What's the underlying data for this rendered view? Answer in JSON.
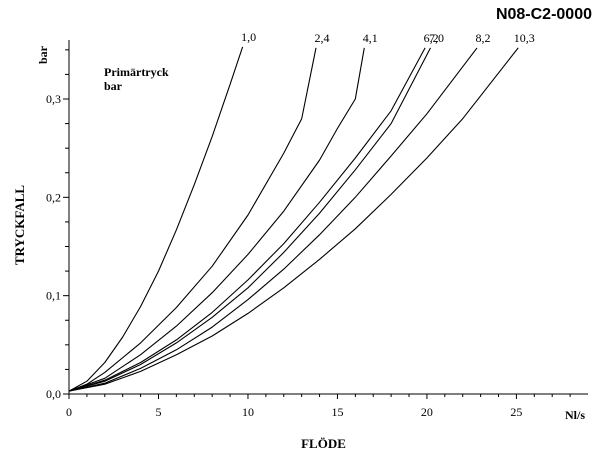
{
  "chart_code": "N08-C2-0000",
  "chart_data": {
    "type": "line",
    "title": "",
    "xlabel": "FLÖDE",
    "xunit": "Nl/s",
    "ylabel": "TRYCKFALL",
    "yunit": "bar",
    "xlim": [
      0,
      29
    ],
    "ylim": [
      0,
      0.36
    ],
    "xticks": [
      0,
      5,
      10,
      15,
      20,
      25
    ],
    "xtick_labels": [
      "0",
      "5",
      "10",
      "15",
      "20",
      "25"
    ],
    "yticks": [
      0.0,
      0.1,
      0.2,
      0.3
    ],
    "ytick_labels": [
      "0,0",
      "0,1",
      "0,2",
      "0,3"
    ],
    "yminor_step": 0.025,
    "grid": false,
    "legend_title": [
      "Primärtryck",
      "bar"
    ],
    "series": [
      {
        "name": "1,0",
        "points": [
          [
            0,
            0.003
          ],
          [
            1,
            0.013
          ],
          [
            2,
            0.032
          ],
          [
            3,
            0.058
          ],
          [
            4,
            0.089
          ],
          [
            5,
            0.125
          ],
          [
            6,
            0.167
          ],
          [
            7,
            0.213
          ],
          [
            8,
            0.262
          ],
          [
            9,
            0.315
          ],
          [
            9.7,
            0.353
          ]
        ]
      },
      {
        "name": "2,4",
        "points": [
          [
            0,
            0.003
          ],
          [
            1,
            0.01
          ],
          [
            2,
            0.022
          ],
          [
            4,
            0.052
          ],
          [
            6,
            0.088
          ],
          [
            8,
            0.13
          ],
          [
            10,
            0.182
          ],
          [
            12,
            0.245
          ],
          [
            13,
            0.28
          ],
          [
            13.8,
            0.352
          ]
        ]
      },
      {
        "name": "4,1",
        "points": [
          [
            0,
            0.003
          ],
          [
            2,
            0.016
          ],
          [
            4,
            0.04
          ],
          [
            6,
            0.069
          ],
          [
            8,
            0.103
          ],
          [
            10,
            0.142
          ],
          [
            12,
            0.186
          ],
          [
            14,
            0.238
          ],
          [
            15,
            0.27
          ],
          [
            16,
            0.3
          ],
          [
            16.5,
            0.352
          ]
        ]
      },
      {
        "name": "6,2",
        "points": [
          [
            0,
            0.003
          ],
          [
            2,
            0.014
          ],
          [
            4,
            0.032
          ],
          [
            6,
            0.055
          ],
          [
            8,
            0.083
          ],
          [
            10,
            0.116
          ],
          [
            12,
            0.153
          ],
          [
            14,
            0.195
          ],
          [
            16,
            0.24
          ],
          [
            18,
            0.288
          ],
          [
            19.9,
            0.352
          ]
        ]
      },
      {
        "name": "7,0",
        "points": [
          [
            0,
            0.003
          ],
          [
            2,
            0.013
          ],
          [
            4,
            0.03
          ],
          [
            6,
            0.052
          ],
          [
            8,
            0.078
          ],
          [
            10,
            0.108
          ],
          [
            12,
            0.144
          ],
          [
            14,
            0.184
          ],
          [
            16,
            0.228
          ],
          [
            18,
            0.275
          ],
          [
            20.2,
            0.352
          ]
        ]
      },
      {
        "name": "8,2",
        "points": [
          [
            0,
            0.003
          ],
          [
            2,
            0.011
          ],
          [
            4,
            0.026
          ],
          [
            6,
            0.045
          ],
          [
            8,
            0.068
          ],
          [
            10,
            0.096
          ],
          [
            12,
            0.127
          ],
          [
            14,
            0.162
          ],
          [
            16,
            0.2
          ],
          [
            18,
            0.242
          ],
          [
            20,
            0.285
          ],
          [
            22.8,
            0.352
          ]
        ]
      },
      {
        "name": "10,3",
        "points": [
          [
            0,
            0.003
          ],
          [
            2,
            0.01
          ],
          [
            4,
            0.023
          ],
          [
            6,
            0.04
          ],
          [
            8,
            0.059
          ],
          [
            10,
            0.082
          ],
          [
            12,
            0.108
          ],
          [
            14,
            0.137
          ],
          [
            16,
            0.168
          ],
          [
            18,
            0.203
          ],
          [
            20,
            0.24
          ],
          [
            22,
            0.28
          ],
          [
            25.1,
            0.352
          ]
        ]
      }
    ]
  }
}
